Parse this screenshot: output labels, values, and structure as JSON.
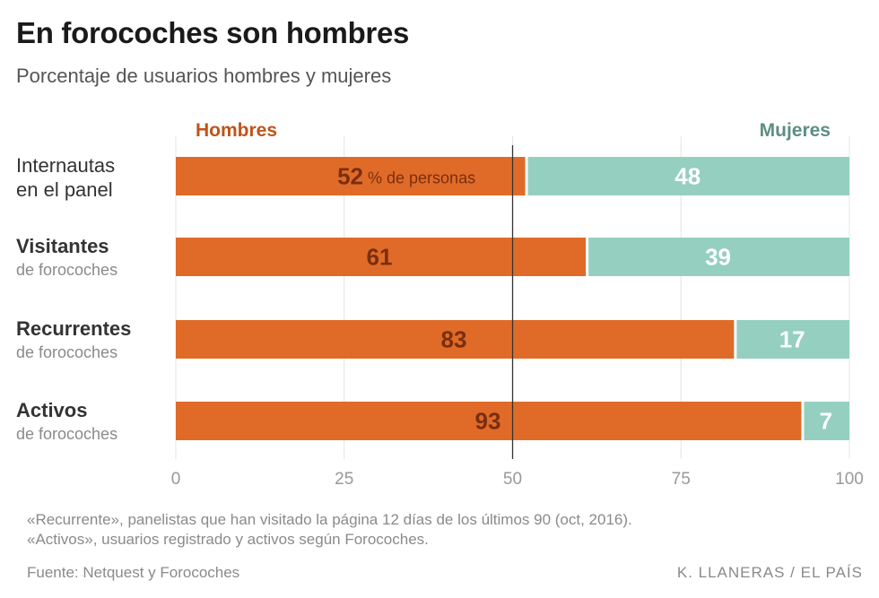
{
  "header": {
    "title": "En forocoches son hombres",
    "subtitle": "Porcentaje de usuarios hombres y mujeres"
  },
  "chart_data": {
    "type": "bar",
    "stacked": true,
    "orientation": "horizontal",
    "xlim": [
      0,
      100
    ],
    "x_ticks": [
      "0",
      "25",
      "50",
      "75",
      "100"
    ],
    "reference_line": 50,
    "grid": true,
    "legend_labels": [
      "Hombres",
      "Mujeres"
    ],
    "unit_label": "% de personas",
    "categories": [
      {
        "main": "Internautas",
        "sub": "en el panel"
      },
      {
        "main": "Visitantes",
        "sub": "de forocoches"
      },
      {
        "main": "Recurrentes",
        "sub": "de forocoches"
      },
      {
        "main": "Activos",
        "sub": "de forocoches"
      }
    ],
    "series": [
      {
        "name": "Hombres",
        "values": [
          52,
          61,
          83,
          93
        ],
        "color": "#e06b28",
        "label_color": "#7a2e0e"
      },
      {
        "name": "Mujeres",
        "values": [
          48,
          39,
          17,
          7
        ],
        "color": "#95cfbf",
        "label_color": "#ffffff"
      }
    ],
    "legend_colors": [
      "#c0531a",
      "#5c8f82"
    ]
  },
  "footer": {
    "note": "«Recurrente», panelistas que han visitado la página 12 días de los últimos 90 (oct, 2016). «Activos», usuarios registrado y activos según Forocoches.",
    "source": "Fuente: Netquest y Forocoches",
    "credit": "K. LLANERAS  /  EL PAÍS"
  }
}
